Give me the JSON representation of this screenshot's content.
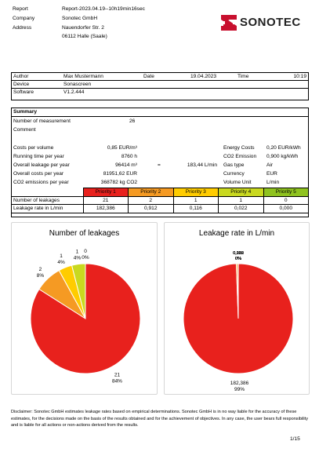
{
  "header": {
    "report_label": "Report",
    "report_value": "Report-2023.04.19--10h19min16sec",
    "company_label": "Company",
    "company_value": "Sonotec GmbH",
    "address_label": "Address",
    "address_line1": "Nauendorfer Str. 2",
    "address_line2": "06112 Halle (Saale)",
    "logo_text": "SONOTEC",
    "logo_color": "#c8102e"
  },
  "meta": {
    "author_label": "Author",
    "author_value": "Max Mustermann",
    "date_label": "Date",
    "date_value": "19.04.2023",
    "time_label": "Time",
    "time_value": "10:19",
    "device_label": "Device",
    "device_value": "Sonascreen",
    "software_label": "Software",
    "software_value": "V1.2.444"
  },
  "summary": {
    "title": "Summary",
    "num_measurement_label": "Number of measurement",
    "num_measurement_value": "26",
    "comment_label": "Comment",
    "costs_per_volume_label": "Costs per volume",
    "costs_per_volume_value": "0,85 EUR/m³",
    "running_time_label": "Running time per year",
    "running_time_value": "8760 h",
    "overall_leakage_label": "Overall leakage per year",
    "overall_leakage_value": "96414 m³",
    "equals": "=",
    "overall_leakage_rate": "183,44 L/min",
    "overall_costs_label": "Overall costs per year",
    "overall_costs_value": "81951,62 EUR",
    "co2_label": "CO2 emissions per year",
    "co2_value": "368782 kg CO2",
    "energy_costs_label": "Energy Costs",
    "energy_costs_value": "0,20 EUR/kWh",
    "co2_emission_label": "CO2 Emission",
    "co2_emission_value": "0,900 kg/kWh",
    "gas_type_label": "Gas type",
    "gas_type_value": "Air",
    "currency_label": "Currency",
    "currency_value": "EUR",
    "volume_unit_label": "Volume Unit",
    "volume_unit_value": "L/min"
  },
  "priority_table": {
    "headers": [
      "Priority 1",
      "Priority 2",
      "Priority 3",
      "Priority 4",
      "Priority 5"
    ],
    "header_colors": [
      "#e8211d",
      "#f59a23",
      "#ffcc00",
      "#c9d91f",
      "#8fc31f"
    ],
    "row1_label": "Number of leakages",
    "row1_values": [
      "21",
      "2",
      "1",
      "1",
      "0"
    ],
    "row2_label": "Leakage rate in L/min",
    "row2_values": [
      "182,386",
      "0,912",
      "0,116",
      "0,022",
      "0,000"
    ]
  },
  "chart_data": [
    {
      "type": "pie",
      "title": "Number of leakages",
      "categories": [
        "Priority 1",
        "Priority 2",
        "Priority 3",
        "Priority 4",
        "Priority 5"
      ],
      "values": [
        21,
        2,
        1,
        1,
        0
      ],
      "percent_labels": [
        "84%",
        "8%",
        "4%",
        "4%",
        "0%"
      ],
      "colors": [
        "#e8211d",
        "#f59a23",
        "#ffcc00",
        "#c9d91f",
        "#8fc31f"
      ]
    },
    {
      "type": "pie",
      "title": "Leakage rate in L/min",
      "categories": [
        "Priority 1",
        "Priority 2",
        "Priority 3",
        "Priority 4",
        "Priority 5"
      ],
      "values": [
        182.386,
        0.912,
        0.116,
        0.022,
        0.0
      ],
      "value_labels": [
        "182,386",
        "0,912",
        "0,116",
        "0,022",
        "0,000"
      ],
      "percent_labels": [
        "99%",
        "0%",
        "0%",
        "0%",
        "0%"
      ],
      "colors": [
        "#e8211d",
        "#f59a23",
        "#ffcc00",
        "#c9d91f",
        "#8fc31f"
      ]
    }
  ],
  "footer": {
    "disclaimer": "Disclaimer: Sonotec GmbH estimates leakage rates based on empirical determinations. Sonotec GmbH is in no way liable for the accuracy of these estimates, for the decisions made on the basis of the results obtained and for the achievement of objectives. In any case, the user bears full responsibility and is liable for all actions or non-actions derived from the results.",
    "page_number": "1/15"
  }
}
